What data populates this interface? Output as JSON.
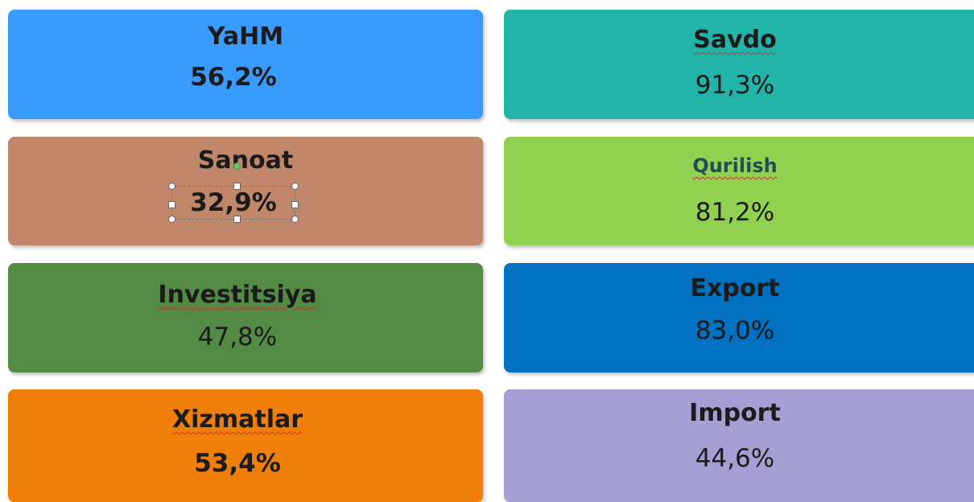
{
  "cards": [
    {
      "title": "YaHM",
      "value": "56,2%"
    },
    {
      "title": "Savdo",
      "value": "91,3%"
    },
    {
      "title": "Sanoat",
      "value": "32,9%"
    },
    {
      "title": "Qurilish",
      "value": "81,2%"
    },
    {
      "title": "Investitsiya",
      "value": "47,8%"
    },
    {
      "title": "Export",
      "value": "83,0%"
    },
    {
      "title": "Xizmatlar",
      "value": "53,4%"
    },
    {
      "title": "Import",
      "value": "44,6%"
    }
  ]
}
